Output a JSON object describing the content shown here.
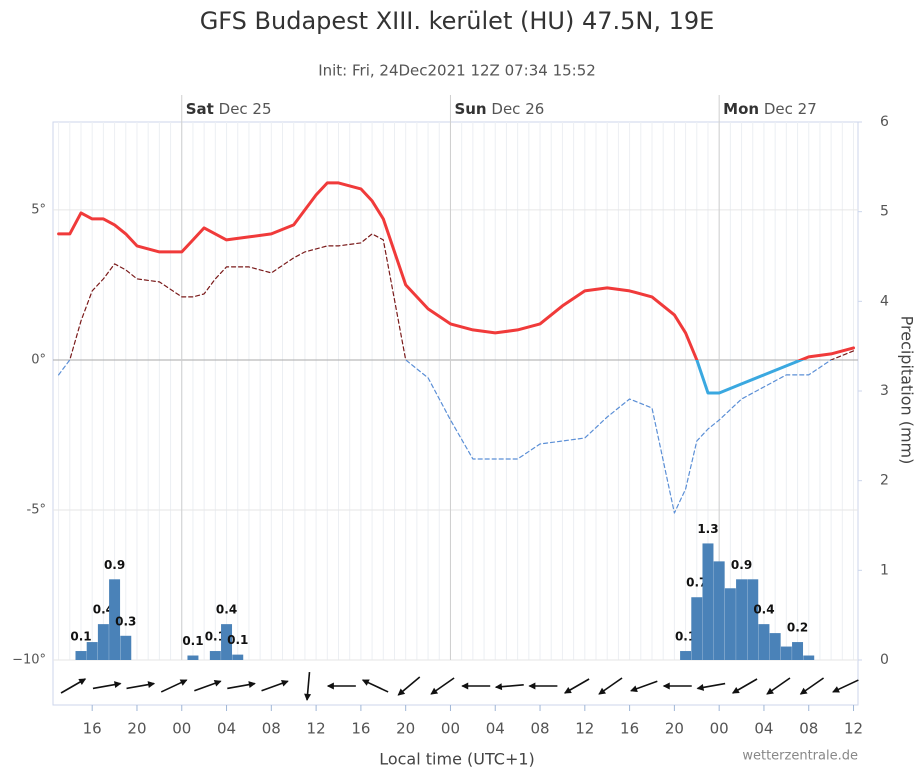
{
  "chart_data": {
    "type": "line",
    "title": "GFS Budapest XIII. kerület (HU) 47.5N, 19E",
    "subtitle": "Init: Fri, 24Dec2021 12Z 07:34 15:52",
    "x_label": "Local time (UTC+1)",
    "y2_label": "Precipitation (mm)",
    "credit": "wetterzentrale.de",
    "xlim": [
      12.5,
      84.4
    ],
    "xticks": [
      {
        "value": 16,
        "label": "16"
      },
      {
        "value": 20,
        "label": "20"
      },
      {
        "value": 24,
        "label": "00"
      },
      {
        "value": 28,
        "label": "04"
      },
      {
        "value": 32,
        "label": "08"
      },
      {
        "value": 36,
        "label": "12"
      },
      {
        "value": 40,
        "label": "16"
      },
      {
        "value": 44,
        "label": "20"
      },
      {
        "value": 48,
        "label": "00"
      },
      {
        "value": 52,
        "label": "04"
      },
      {
        "value": 56,
        "label": "08"
      },
      {
        "value": 60,
        "label": "12"
      },
      {
        "value": 64,
        "label": "16"
      },
      {
        "value": 68,
        "label": "20"
      },
      {
        "value": 72,
        "label": "00"
      },
      {
        "value": 76,
        "label": "04"
      },
      {
        "value": 80,
        "label": "08"
      },
      {
        "value": 84,
        "label": "12"
      }
    ],
    "day_labels": [
      {
        "value": 24,
        "day": "Sat",
        "date": "Dec 25"
      },
      {
        "value": 48,
        "day": "Sun",
        "date": "Dec 26"
      },
      {
        "value": 72,
        "day": "Mon",
        "date": "Dec 27"
      }
    ],
    "minor_grid_step": 1,
    "ylim": [
      -10,
      7.93
    ],
    "yticks": [
      {
        "value": -10,
        "label": "−10°"
      },
      {
        "value": -5,
        "label": "-5°"
      },
      {
        "value": 0,
        "label": "0°"
      },
      {
        "value": 5,
        "label": "5°"
      }
    ],
    "y2lim": [
      0,
      6
    ],
    "y2ticks": [
      0,
      1,
      2,
      3,
      4,
      5,
      6
    ],
    "grid": true,
    "series": [
      {
        "type": "line",
        "color": "#f03a3a",
        "color_below_zero": "#3aa8e0",
        "dashed": false,
        "x": [
          13,
          14,
          15,
          16,
          17,
          18,
          19,
          20,
          22,
          24,
          25,
          26,
          27,
          28,
          30,
          32,
          34,
          35,
          36,
          37,
          38,
          40,
          41,
          42,
          43,
          44,
          46,
          48,
          50,
          52,
          54,
          56,
          58,
          60,
          62,
          64,
          66,
          68,
          69,
          70,
          71,
          72,
          74,
          76,
          78,
          80,
          82,
          84
        ],
        "values": [
          4.2,
          4.2,
          4.9,
          4.7,
          4.7,
          4.5,
          4.2,
          3.8,
          3.6,
          3.6,
          4.0,
          4.4,
          4.2,
          4.0,
          4.1,
          4.2,
          4.5,
          5.0,
          5.5,
          5.9,
          5.9,
          5.7,
          5.3,
          4.7,
          3.6,
          2.5,
          1.7,
          1.2,
          1.0,
          0.9,
          1.0,
          1.2,
          1.8,
          2.3,
          2.4,
          2.3,
          2.1,
          1.5,
          0.9,
          0.0,
          -1.1,
          -1.1,
          -0.8,
          -0.5,
          -0.2,
          0.1,
          0.2,
          0.4
        ]
      },
      {
        "type": "line",
        "color": "#7a1a1a",
        "color_below_zero": "#5b8fd6",
        "dashed": true,
        "x": [
          13,
          14,
          15,
          16,
          17,
          18,
          19,
          20,
          22,
          24,
          25,
          26,
          27,
          28,
          30,
          32,
          34,
          35,
          36,
          37,
          38,
          40,
          41,
          42,
          43,
          44,
          46,
          48,
          50,
          52,
          54,
          56,
          58,
          60,
          62,
          64,
          66,
          68,
          69,
          70,
          71,
          72,
          74,
          76,
          78,
          80,
          82,
          84
        ],
        "values": [
          -0.5,
          0.0,
          1.3,
          2.3,
          2.7,
          3.2,
          3.0,
          2.7,
          2.6,
          2.1,
          2.1,
          2.2,
          2.7,
          3.1,
          3.1,
          2.9,
          3.4,
          3.6,
          3.7,
          3.8,
          3.8,
          3.9,
          4.2,
          4.0,
          2.0,
          0.0,
          -0.6,
          -2.0,
          -3.3,
          -3.3,
          -3.3,
          -2.8,
          -2.7,
          -2.6,
          -1.9,
          -1.3,
          -1.6,
          -5.1,
          -4.3,
          -2.7,
          -2.3,
          -2.0,
          -1.3,
          -0.9,
          -0.5,
          -0.5,
          0.0,
          0.3
        ]
      },
      {
        "type": "bar",
        "axis": "y2",
        "color": "#4a82b8",
        "x": [
          15,
          16,
          17,
          18,
          19,
          25,
          27,
          28,
          29,
          69,
          70,
          71,
          72,
          73,
          74,
          75,
          76,
          77,
          78,
          79,
          80
        ],
        "values": [
          0.1,
          0.2,
          0.4,
          0.9,
          0.27,
          0.05,
          0.1,
          0.4,
          0.06,
          0.1,
          0.7,
          1.3,
          1.1,
          0.8,
          0.9,
          0.9,
          0.4,
          0.3,
          0.15,
          0.2,
          0.05
        ],
        "value_labels": [
          "0.1",
          null,
          "0.4",
          "0.9",
          "0.3",
          "0.1",
          "0.1",
          "0.4",
          "0.1",
          "0.1",
          "0.7",
          "1.3",
          null,
          null,
          "0.9",
          null,
          "0.4",
          null,
          null,
          "0.2",
          null
        ]
      }
    ],
    "wind": {
      "color": "#111",
      "x": [
        14.3,
        17.3,
        20.3,
        23.3,
        26.3,
        29.3,
        32.3,
        35.3,
        38.3,
        41.3,
        44.3,
        47.3,
        50.3,
        53.3,
        56.3,
        59.3,
        62.3,
        65.3,
        68.3,
        71.3,
        74.3,
        77.3,
        80.3,
        83.3
      ],
      "direction": [
        30,
        10,
        10,
        25,
        20,
        10,
        20,
        -95,
        180,
        155,
        220,
        215,
        180,
        185,
        180,
        210,
        215,
        200,
        180,
        190,
        210,
        215,
        215,
        205
      ]
    }
  }
}
